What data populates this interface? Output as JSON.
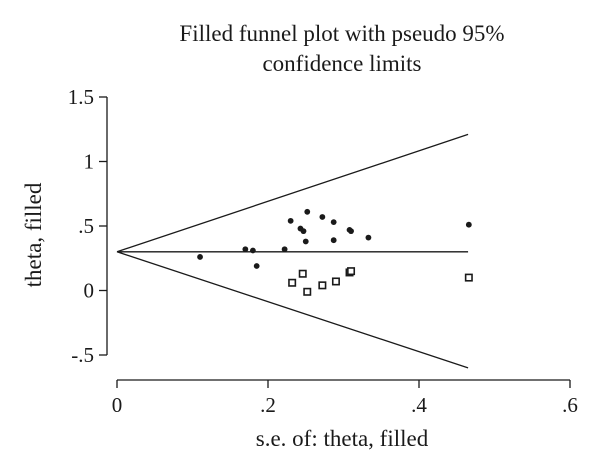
{
  "chart_data": {
    "type": "scatter",
    "title_line1": "Filled funnel plot with pseudo 95%",
    "title_line2": "confidence limits",
    "xlabel": "s.e. of: theta, filled",
    "ylabel": "theta, filled",
    "xlim": [
      0,
      0.6
    ],
    "ylim": [
      -0.6,
      1.5
    ],
    "x_ticks": [
      {
        "value": 0,
        "label": "0"
      },
      {
        "value": 0.2,
        "label": ".2"
      },
      {
        "value": 0.4,
        "label": ".4"
      },
      {
        "value": 0.6,
        "label": ".6"
      }
    ],
    "y_ticks": [
      {
        "value": 1.5,
        "label": "1.5"
      },
      {
        "value": 1,
        "label": "1"
      },
      {
        "value": 0.5,
        "label": ".5"
      },
      {
        "value": 0,
        "label": "0"
      },
      {
        "value": -0.5,
        "label": "-.5"
      }
    ],
    "pooled_estimate": 0.3,
    "funnel": {
      "apex_se": 0,
      "max_se": 0.465,
      "upper_at_max": 1.21,
      "lower_at_max": -0.6
    },
    "series": [
      {
        "marker": "dot",
        "points": [
          {
            "x": 0.11,
            "y": 0.26
          },
          {
            "x": 0.17,
            "y": 0.32
          },
          {
            "x": 0.18,
            "y": 0.31
          },
          {
            "x": 0.185,
            "y": 0.19
          },
          {
            "x": 0.222,
            "y": 0.32
          },
          {
            "x": 0.23,
            "y": 0.54
          },
          {
            "x": 0.243,
            "y": 0.48
          },
          {
            "x": 0.247,
            "y": 0.46
          },
          {
            "x": 0.25,
            "y": 0.38
          },
          {
            "x": 0.252,
            "y": 0.61
          },
          {
            "x": 0.272,
            "y": 0.57
          },
          {
            "x": 0.287,
            "y": 0.53
          },
          {
            "x": 0.287,
            "y": 0.39
          },
          {
            "x": 0.308,
            "y": 0.47
          },
          {
            "x": 0.31,
            "y": 0.46
          },
          {
            "x": 0.333,
            "y": 0.41
          },
          {
            "x": 0.466,
            "y": 0.51
          }
        ]
      },
      {
        "marker": "hollow-square",
        "points": [
          {
            "x": 0.232,
            "y": 0.06
          },
          {
            "x": 0.246,
            "y": 0.13
          },
          {
            "x": 0.252,
            "y": -0.01
          },
          {
            "x": 0.272,
            "y": 0.04
          },
          {
            "x": 0.29,
            "y": 0.07
          },
          {
            "x": 0.308,
            "y": 0.14
          },
          {
            "x": 0.31,
            "y": 0.15
          },
          {
            "x": 0.466,
            "y": 0.1
          }
        ]
      }
    ],
    "grid": false,
    "legend": "none"
  }
}
